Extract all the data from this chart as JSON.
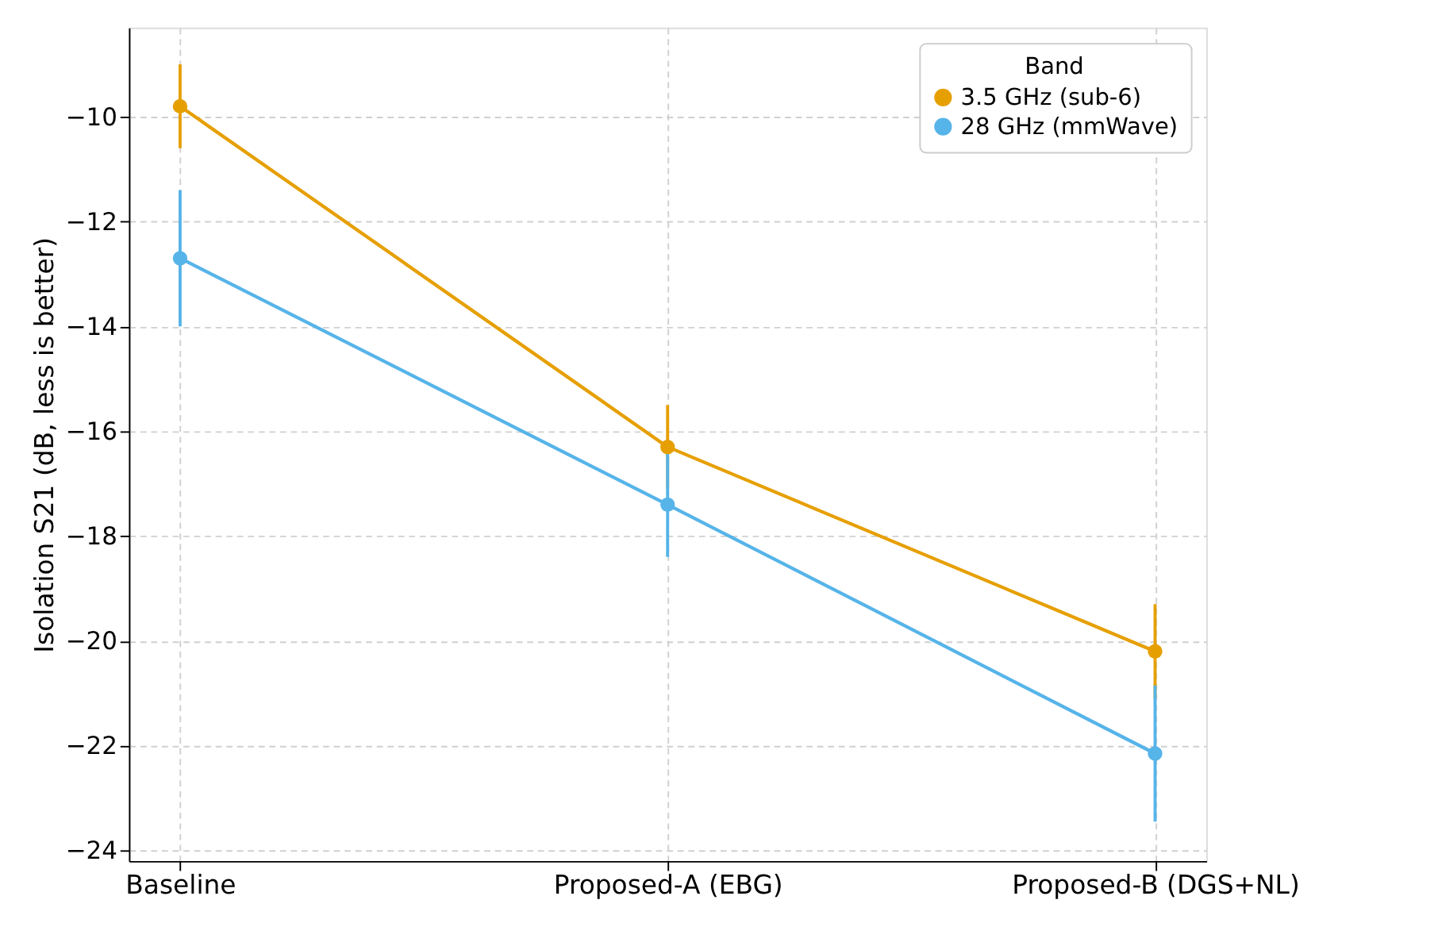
{
  "chart_data": {
    "type": "line",
    "ylabel": "Isolation S21 (dB, less is better)",
    "legend_title": "Band",
    "categories": [
      "Baseline",
      "Proposed-A (EBG)",
      "Proposed-B (DGS+NL)"
    ],
    "series": [
      {
        "name": "3.5 GHz (sub-6)",
        "color": "#e69f00",
        "values": [
          -9.8,
          -16.3,
          -20.2
        ],
        "errors": [
          0.8,
          0.8,
          0.9
        ]
      },
      {
        "name": "28 GHz (mmWave)",
        "color": "#56b4e9",
        "values": [
          -12.7,
          -17.4,
          -22.15
        ],
        "errors": [
          1.3,
          1.0,
          1.3
        ]
      }
    ],
    "ylim": [
      -24.2,
      -8.3
    ],
    "yticks": [
      -24,
      -22,
      -20,
      -18,
      -16,
      -14,
      -12,
      -10
    ],
    "grid": true,
    "legend": "top right",
    "marker": "circle",
    "line_style": "solid"
  }
}
